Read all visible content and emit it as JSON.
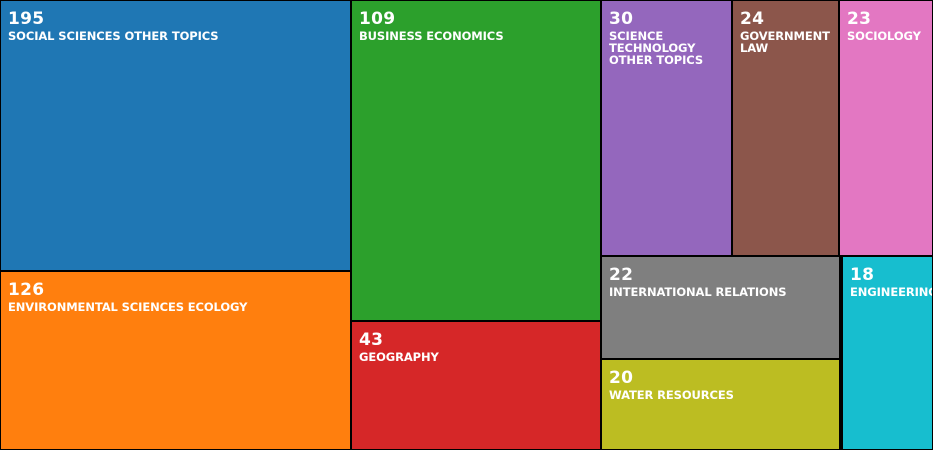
{
  "chart_data": {
    "type": "treemap",
    "title": "",
    "items": [
      {
        "label": "SOCIAL SCIENCES OTHER TOPICS",
        "value": 195,
        "value_text": "195",
        "color": "#1f77b4"
      },
      {
        "label": "ENVIRONMENTAL SCIENCES ECOLOGY",
        "value": 126,
        "value_text": "126",
        "color": "#ff7f0e"
      },
      {
        "label": "BUSINESS ECONOMICS",
        "value": 109,
        "value_text": "109",
        "color": "#2ca02c"
      },
      {
        "label": "GEOGRAPHY",
        "value": 43,
        "value_text": "43",
        "color": "#d62728"
      },
      {
        "label": "SCIENCE TECHNOLOGY OTHER TOPICS",
        "value": 30,
        "value_text": "30",
        "color": "#9467bd"
      },
      {
        "label": "GOVERNMENT LAW",
        "value": 24,
        "value_text": "24",
        "color": "#8c564b"
      },
      {
        "label": "SOCIOLOGY",
        "value": 23,
        "value_text": "23",
        "color": "#e377c2"
      },
      {
        "label": "INTERNATIONAL RELATIONS",
        "value": 22,
        "value_text": "22",
        "color": "#7f7f7f"
      },
      {
        "label": "WATER RESOURCES",
        "value": 20,
        "value_text": "20",
        "color": "#bcbd22"
      },
      {
        "label": "ENGINEERING",
        "value": 18,
        "value_text": "18",
        "color": "#17becf"
      }
    ]
  }
}
